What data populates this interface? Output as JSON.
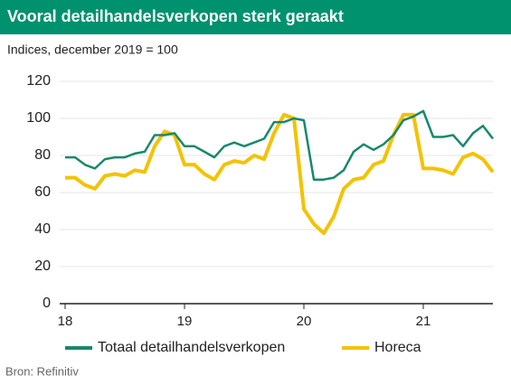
{
  "chart_data": {
    "type": "line",
    "title": "Vooral detailhandelsverkopen sterk geraakt",
    "subtitle": "Indices, december 2019 = 100",
    "source": "Bron: Refinitiv",
    "categories": [
      "18",
      null,
      null,
      null,
      null,
      null,
      null,
      null,
      null,
      null,
      null,
      null,
      "19",
      null,
      null,
      null,
      null,
      null,
      null,
      null,
      null,
      null,
      null,
      null,
      "20",
      null,
      null,
      null,
      null,
      null,
      null,
      null,
      null,
      null,
      null,
      null,
      "21",
      null,
      null,
      null,
      null,
      null,
      null,
      null
    ],
    "series": [
      {
        "name": "Totaal detailhandelsverkopen",
        "color": "#17896c",
        "values": [
          79,
          79,
          75,
          73,
          78,
          79,
          79,
          81,
          82,
          91,
          91,
          92,
          85,
          85,
          82,
          79,
          85,
          87,
          85,
          87,
          89,
          98,
          98,
          100,
          99,
          67,
          67,
          68,
          72,
          82,
          86,
          83,
          86,
          91,
          99,
          101,
          104,
          90,
          90,
          91,
          85,
          92,
          96,
          89
        ]
      },
      {
        "name": "Horeca",
        "color": "#f2c300",
        "values": [
          68,
          68,
          64,
          62,
          69,
          70,
          69,
          72,
          71,
          85,
          93,
          91,
          75,
          75,
          70,
          67,
          75,
          77,
          76,
          80,
          78,
          92,
          102,
          100,
          51,
          43,
          38,
          47,
          62,
          67,
          68,
          75,
          77,
          91,
          102,
          102,
          73,
          73,
          72,
          70,
          79,
          81,
          78,
          71
        ]
      }
    ],
    "ylim": [
      0,
      120
    ],
    "yticks": [
      0,
      20,
      40,
      60,
      80,
      100,
      120
    ],
    "grid": true,
    "legend": "bottom"
  }
}
